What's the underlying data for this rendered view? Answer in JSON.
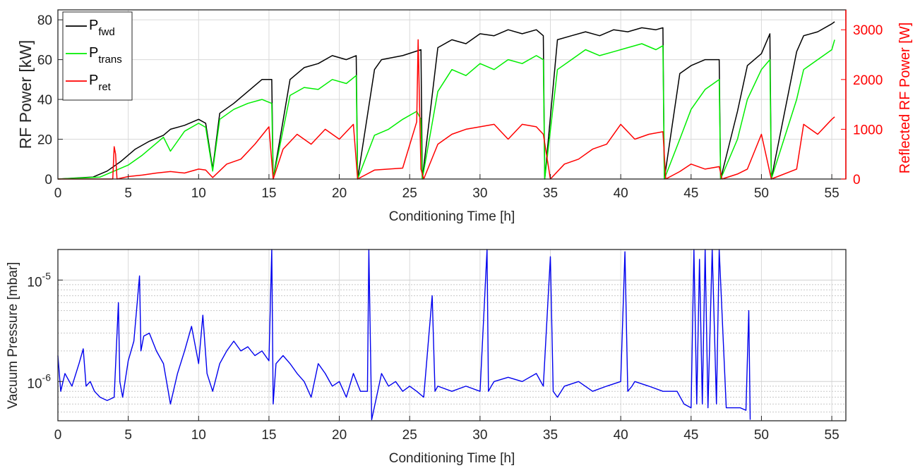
{
  "chart_data": [
    {
      "type": "line",
      "xlabel": "Conditioning Time [h]",
      "ylabel": "RF Power [kW]",
      "ylabel_right": "Reflected RF Power [W]",
      "xlim": [
        0,
        56
      ],
      "ylim": [
        0,
        85
      ],
      "ylim_right": [
        0,
        3400
      ],
      "x_ticks": [
        "0",
        "5",
        "10",
        "15",
        "20",
        "25",
        "30",
        "35",
        "40",
        "45",
        "50",
        "55"
      ],
      "y_ticks": [
        "0",
        "20",
        "40",
        "60",
        "80"
      ],
      "y_ticks_right": [
        "0",
        "1000",
        "2000",
        "3000"
      ],
      "grid": true,
      "legend_position": "top-left",
      "colors": {
        "fwd": "#000000",
        "trans": "#00ee00",
        "ret": "#ff0000",
        "right_axis": "#ff0000"
      },
      "legend": [
        {
          "key": "fwd",
          "base": "P",
          "sub": "fwd"
        },
        {
          "key": "trans",
          "base": "P",
          "sub": "trans"
        },
        {
          "key": "ret",
          "base": "P",
          "sub": "ret"
        }
      ],
      "series": [
        {
          "key": "fwd",
          "x": [
            0,
            2.5,
            3.5,
            4.5,
            5.5,
            6.5,
            7.5,
            8,
            9,
            10,
            10.5,
            11,
            11.5,
            12.5,
            13.5,
            14.5,
            15.2,
            15.3,
            16.5,
            17.5,
            18.5,
            19.5,
            20.5,
            21.2,
            21.3,
            22.5,
            23,
            24.5,
            25.8,
            25.9,
            27,
            28,
            29,
            30,
            31,
            32,
            33,
            34,
            34.5,
            34.6,
            35.5,
            36.5,
            37.5,
            38.5,
            39.5,
            40.5,
            41.5,
            42.5,
            43,
            43.1,
            44.2,
            45,
            46,
            47,
            47.1,
            48.3,
            49,
            50,
            50.6,
            50.7,
            52.5,
            53,
            54,
            55,
            55.2
          ],
          "y": [
            0,
            1,
            4,
            9,
            15,
            19,
            22,
            25,
            27,
            30,
            28,
            5,
            33,
            38,
            44,
            50,
            50,
            0,
            50,
            56,
            58,
            62,
            60,
            62,
            0,
            55,
            60,
            62,
            65,
            0,
            66,
            70,
            68,
            73,
            72,
            75,
            73,
            75,
            72,
            0,
            70,
            72,
            74,
            72,
            75,
            74,
            76,
            75,
            76,
            0,
            53,
            57,
            60,
            60,
            0,
            34,
            57,
            63,
            73,
            0,
            64,
            72,
            74,
            78,
            79
          ]
        },
        {
          "key": "trans",
          "x": [
            0,
            3,
            4,
            5,
            6,
            7,
            7.5,
            8,
            9,
            10,
            10.5,
            11,
            11.5,
            12.5,
            13.5,
            14.5,
            15.2,
            15.3,
            16.5,
            17.5,
            18.5,
            19.5,
            20.5,
            21.2,
            21.3,
            22.5,
            23.5,
            24.5,
            25.5,
            25.8,
            25.9,
            27,
            28,
            29,
            30,
            31,
            32,
            33,
            34,
            34.5,
            34.6,
            35.5,
            36.5,
            37.5,
            38.5,
            39.5,
            40.5,
            41.5,
            42.5,
            43,
            43.1,
            44.2,
            45,
            46,
            47,
            47.1,
            48.3,
            49,
            50,
            50.6,
            50.7,
            52.5,
            53,
            54,
            55,
            55.2
          ],
          "y": [
            0,
            1,
            4,
            7,
            12,
            18,
            21,
            14,
            24,
            28,
            26,
            4,
            30,
            35,
            38,
            40,
            38,
            0,
            42,
            46,
            45,
            50,
            48,
            52,
            0,
            22,
            25,
            30,
            34,
            30,
            0,
            44,
            55,
            52,
            58,
            55,
            60,
            58,
            62,
            60,
            0,
            55,
            60,
            65,
            62,
            64,
            66,
            68,
            65,
            67,
            0,
            20,
            35,
            45,
            50,
            0,
            20,
            40,
            55,
            60,
            0,
            40,
            55,
            60,
            65,
            70
          ]
        },
        {
          "key": "ret",
          "x": [
            0,
            3.9,
            4,
            4.1,
            4.2,
            5,
            6,
            7,
            8,
            9,
            10,
            10.5,
            11,
            12,
            13,
            14,
            15,
            15.3,
            16,
            17,
            18,
            19,
            20,
            21,
            21.3,
            22.5,
            23.5,
            24.5,
            25.5,
            25.6,
            25.8,
            26,
            27,
            28,
            29,
            30,
            31,
            32,
            33,
            34,
            34.5,
            35,
            36,
            37,
            38,
            39,
            40,
            41,
            42,
            43,
            43.2,
            44.2,
            45,
            46,
            47,
            47.2,
            48.3,
            49,
            50,
            50.7,
            52.5,
            53,
            54,
            55,
            55.2
          ],
          "y": [
            0,
            0,
            650,
            500,
            0,
            50,
            80,
            120,
            150,
            120,
            200,
            180,
            30,
            300,
            400,
            700,
            1050,
            0,
            600,
            900,
            700,
            1000,
            800,
            1100,
            0,
            180,
            200,
            220,
            1150,
            2800,
            200,
            0,
            700,
            900,
            1000,
            1050,
            1100,
            800,
            1100,
            1050,
            900,
            0,
            300,
            400,
            600,
            700,
            1100,
            800,
            900,
            950,
            0,
            150,
            300,
            200,
            250,
            0,
            100,
            200,
            900,
            0,
            200,
            1100,
            900,
            1200,
            1250
          ]
        }
      ]
    },
    {
      "type": "line",
      "xlabel": "Conditioning Time [h]",
      "ylabel": "Vacuum Pressure [mbar]",
      "xlim": [
        0,
        56
      ],
      "ylim": [
        4.1e-07,
        2e-05
      ],
      "y_scale": "log",
      "x_ticks": [
        "0",
        "5",
        "10",
        "15",
        "20",
        "25",
        "30",
        "35",
        "40",
        "45",
        "50",
        "55"
      ],
      "y_tick_labels": [
        {
          "value": 1e-06,
          "base": "10",
          "exp": "-6"
        },
        {
          "value": 1e-05,
          "base": "10",
          "exp": "-5"
        }
      ],
      "grid": true,
      "colors": {
        "pressure": "#0000ee"
      },
      "series": [
        {
          "key": "pressure",
          "x": [
            0,
            0.2,
            0.5,
            1,
            1.5,
            1.8,
            2,
            2.3,
            2.6,
            3,
            3.5,
            4,
            4.3,
            4.4,
            4.6,
            5,
            5.4,
            5.8,
            5.9,
            6.1,
            6.5,
            7,
            7.5,
            8,
            8.5,
            9,
            9.5,
            10,
            10.3,
            10.6,
            11,
            11.5,
            12,
            12.5,
            13,
            13.5,
            14,
            14.5,
            15,
            15.2,
            15.3,
            15.5,
            16,
            16.5,
            17,
            17.5,
            18,
            18.5,
            19,
            19.5,
            20,
            20.5,
            21,
            21.5,
            22,
            22.1,
            22.3,
            23,
            23.5,
            24,
            24.5,
            25,
            25.5,
            26,
            26.6,
            26.8,
            27,
            28,
            29,
            30,
            30.5,
            30.6,
            30.8,
            31,
            32,
            33,
            34,
            34.5,
            35,
            35.2,
            35.5,
            36,
            37,
            38,
            39,
            40,
            40.3,
            40.5,
            40.8,
            41,
            42,
            43,
            44,
            44.5,
            45,
            45.2,
            45.4,
            45.6,
            45.8,
            46,
            46.2,
            46.5,
            46.8,
            47,
            47.5,
            48,
            48.5,
            48.9,
            49.1,
            49.2
          ],
          "y": [
            1.8e-06,
            8e-07,
            1.2e-06,
            9e-07,
            1.5e-06,
            2.1e-06,
            9e-07,
            1e-06,
            8e-07,
            7e-07,
            6.5e-07,
            7e-07,
            6e-06,
            1e-06,
            7e-07,
            1.6e-06,
            2.5e-06,
            1.1e-05,
            2e-06,
            2.8e-06,
            3e-06,
            2e-06,
            1.5e-06,
            6e-07,
            1.2e-06,
            2e-06,
            3.5e-06,
            1.5e-06,
            4.5e-06,
            1.2e-06,
            8e-07,
            1.5e-06,
            2e-06,
            2.5e-06,
            2e-06,
            2.2e-06,
            1.8e-06,
            2e-06,
            1.6e-06,
            2e-05,
            6e-07,
            1.5e-06,
            1.8e-06,
            1.5e-06,
            1.2e-06,
            1e-06,
            7e-07,
            1.5e-06,
            1.2e-06,
            9e-07,
            1e-06,
            7e-07,
            1.2e-06,
            8e-07,
            8e-07,
            2e-05,
            4.2e-07,
            1.2e-06,
            9e-07,
            1e-06,
            8e-07,
            9e-07,
            8e-07,
            7e-07,
            7e-06,
            8e-07,
            9e-07,
            8e-07,
            9e-07,
            8e-07,
            2e-05,
            8e-07,
            9e-07,
            1e-06,
            1.1e-06,
            1e-06,
            1.2e-06,
            9e-07,
            1.7e-05,
            8e-07,
            7e-07,
            9e-07,
            1e-06,
            8e-07,
            9e-07,
            1e-06,
            1.9e-05,
            8e-07,
            9e-07,
            1e-06,
            9e-07,
            8e-07,
            8e-07,
            6e-07,
            5.5e-07,
            2e-05,
            6e-07,
            1.6e-05,
            6e-07,
            2e-05,
            5.5e-07,
            2e-05,
            6e-07,
            2e-05,
            5.5e-07,
            5.5e-07,
            5.5e-07,
            5.2e-07,
            5e-06,
            4.2e-07
          ]
        }
      ]
    }
  ]
}
